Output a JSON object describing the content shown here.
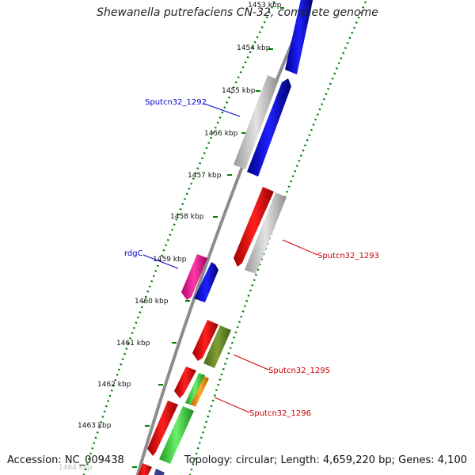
{
  "title": "Shewanella putrefaciens CN-32, complete genome",
  "footer": {
    "accession": "Accession: NC_009438",
    "topology": "Topology: circular; Length: 4,659,220 bp; Genes: 4,100"
  },
  "ticks": [
    "1453 kbp",
    "1454 kbp",
    "1455 kbp",
    "1456 kbp",
    "1457 kbp",
    "1458 kbp",
    "1459 kbp",
    "1460 kbp",
    "1461 kbp",
    "1462 kbp",
    "1463 kbp",
    "1464 kbp"
  ],
  "gene_labels": {
    "sputcn32_1292": "Sputcn32_1292",
    "rdgc": "rdgC",
    "sputcn32_1293": "Sputcn32_1293",
    "sputcn32_1295": "Sputcn32_1295",
    "sputcn32_1296": "Sputcn32_1296"
  },
  "colors": {
    "blue_label": "#0000cc",
    "red_label": "#cc0000",
    "tick_green": "#008000",
    "backbone": "#8c8c8c"
  },
  "features": [
    {
      "name": "gene-blue-1",
      "color": "blue",
      "strand": "forward"
    },
    {
      "name": "gene-grey-1292",
      "color": "grey",
      "strand": "reverse"
    },
    {
      "name": "gene-blue-2",
      "color": "blue",
      "strand": "forward"
    },
    {
      "name": "gene-red-1",
      "color": "red",
      "strand": "reverse"
    },
    {
      "name": "gene-grey-1293",
      "color": "grey",
      "strand": "forward"
    },
    {
      "name": "gene-magenta-rdgc",
      "color": "magenta",
      "strand": "reverse"
    },
    {
      "name": "gene-blue-3",
      "color": "blue",
      "strand": "forward"
    },
    {
      "name": "gene-red-2",
      "color": "red",
      "strand": "reverse"
    },
    {
      "name": "gene-olive-1295",
      "color": "olive",
      "strand": "forward"
    },
    {
      "name": "gene-red-3",
      "color": "red",
      "strand": "reverse"
    },
    {
      "name": "gene-green-1",
      "color": "green",
      "strand": "forward"
    },
    {
      "name": "gene-orange-1296",
      "color": "orange",
      "strand": "forward"
    },
    {
      "name": "gene-red-4",
      "color": "red",
      "strand": "reverse"
    },
    {
      "name": "gene-green-2",
      "color": "green",
      "strand": "forward"
    }
  ]
}
